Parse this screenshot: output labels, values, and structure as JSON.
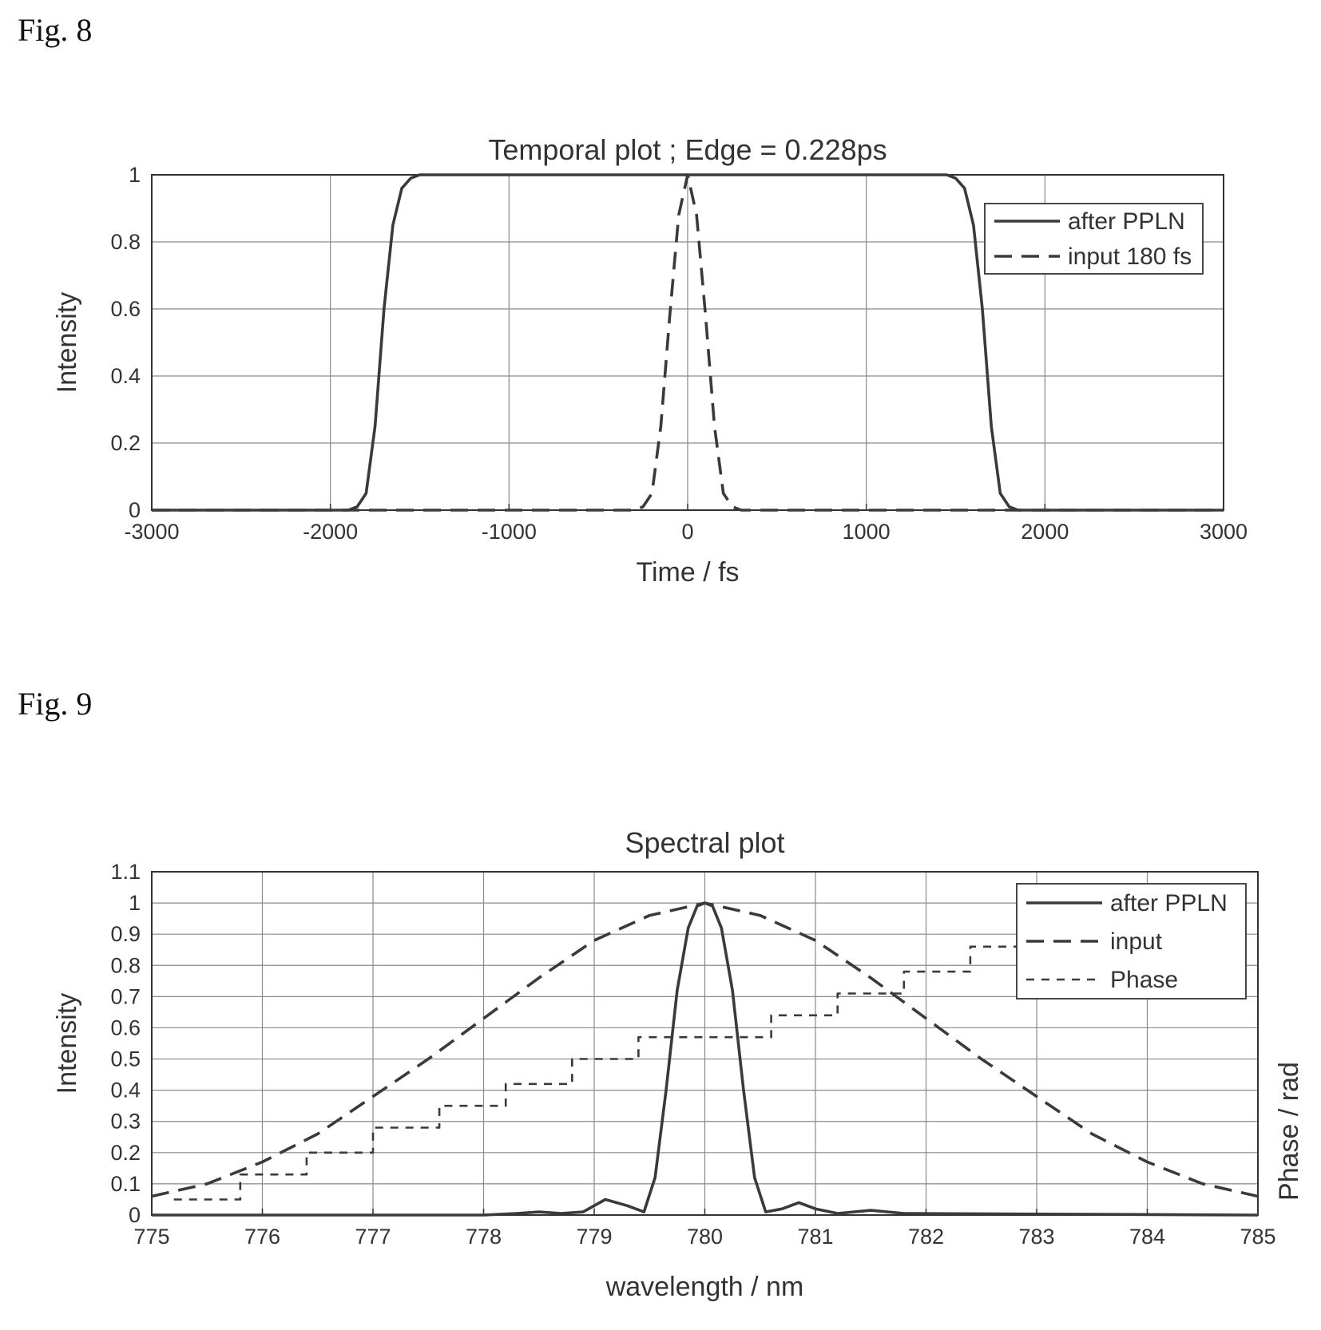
{
  "figures": {
    "fig8_label": "Fig. 8",
    "fig9_label": "Fig. 9"
  },
  "chart_data": [
    {
      "type": "line",
      "title": "Temporal plot ; Edge = 0.228ps",
      "xlabel": "Time / fs",
      "ylabel": "Intensity",
      "xlim": [
        -3000,
        3000
      ],
      "ylim": [
        0,
        1
      ],
      "xticks": [
        -3000,
        -2000,
        -1000,
        0,
        1000,
        2000,
        3000
      ],
      "yticks": [
        0,
        0.2,
        0.4,
        0.6,
        0.8,
        1
      ],
      "xtick_labels": [
        "-3000",
        "-2000",
        "-1000",
        "0",
        "1000",
        "2000",
        "3000"
      ],
      "ytick_labels": [
        "0",
        "0.2",
        "0.4",
        "0.6",
        "0.8",
        "1"
      ],
      "grid": true,
      "legend_position": "top-right",
      "series": [
        {
          "name": "after PPLN",
          "style": "solid",
          "x": [
            -3000,
            -2000,
            -1900,
            -1850,
            -1800,
            -1750,
            -1700,
            -1650,
            -1600,
            -1550,
            -1500,
            -1450,
            -1400,
            1400,
            1450,
            1500,
            1550,
            1600,
            1650,
            1700,
            1750,
            1800,
            1850,
            1900,
            2000,
            3000
          ],
          "y": [
            0,
            0,
            0,
            0.01,
            0.05,
            0.25,
            0.6,
            0.85,
            0.96,
            0.99,
            1,
            1,
            1,
            1,
            1,
            0.99,
            0.96,
            0.85,
            0.6,
            0.25,
            0.05,
            0.01,
            0,
            0,
            0,
            0
          ]
        },
        {
          "name": "input 180 fs",
          "style": "dashed",
          "x": [
            -3000,
            -300,
            -250,
            -200,
            -150,
            -100,
            -50,
            0,
            50,
            100,
            150,
            200,
            250,
            300,
            3000
          ],
          "y": [
            0,
            0,
            0.01,
            0.05,
            0.25,
            0.58,
            0.88,
            1,
            0.88,
            0.58,
            0.25,
            0.05,
            0.01,
            0,
            0
          ]
        }
      ]
    },
    {
      "type": "line",
      "title": "Spectral plot",
      "xlabel": "wavelength / nm",
      "ylabel": "Intensity",
      "ylabel_right": "Phase / rad",
      "xlim": [
        775,
        785
      ],
      "ylim": [
        0,
        1.1
      ],
      "xticks": [
        775,
        776,
        777,
        778,
        779,
        780,
        781,
        782,
        783,
        784,
        785
      ],
      "yticks": [
        0,
        0.1,
        0.2,
        0.3,
        0.4,
        0.5,
        0.6,
        0.7,
        0.8,
        0.9,
        1,
        1.1
      ],
      "xtick_labels": [
        "775",
        "776",
        "777",
        "778",
        "779",
        "780",
        "781",
        "782",
        "783",
        "784",
        "785"
      ],
      "ytick_labels": [
        "0",
        "0.1",
        "0.2",
        "0.3",
        "0.4",
        "0.5",
        "0.6",
        "0.7",
        "0.8",
        "0.9",
        "1",
        "1.1"
      ],
      "grid": true,
      "legend_position": "top-right",
      "series": [
        {
          "name": "after PPLN",
          "style": "solid",
          "x": [
            775,
            778,
            778.3,
            778.5,
            778.7,
            778.9,
            779.1,
            779.3,
            779.45,
            779.55,
            779.65,
            779.75,
            779.85,
            779.93,
            780,
            780.07,
            780.15,
            780.25,
            780.35,
            780.45,
            780.55,
            780.7,
            780.85,
            781.0,
            781.2,
            781.5,
            781.8,
            785
          ],
          "y": [
            0,
            0,
            0.005,
            0.01,
            0.005,
            0.01,
            0.05,
            0.03,
            0.01,
            0.12,
            0.4,
            0.72,
            0.92,
            0.99,
            1,
            0.99,
            0.92,
            0.72,
            0.4,
            0.12,
            0.01,
            0.02,
            0.04,
            0.02,
            0.005,
            0.015,
            0.005,
            0
          ]
        },
        {
          "name": "input",
          "style": "dashed",
          "x": [
            775,
            775.5,
            776,
            776.5,
            777,
            777.5,
            778,
            778.5,
            779,
            779.5,
            780,
            780.5,
            781,
            781.5,
            782,
            782.5,
            783,
            783.5,
            784,
            784.5,
            785
          ],
          "y": [
            0.06,
            0.1,
            0.17,
            0.26,
            0.38,
            0.5,
            0.63,
            0.76,
            0.88,
            0.96,
            1,
            0.96,
            0.88,
            0.76,
            0.63,
            0.5,
            0.38,
            0.26,
            0.17,
            0.1,
            0.06
          ]
        },
        {
          "name": "Phase",
          "style": "dotted-step",
          "x": [
            775.2,
            775.8,
            775.8,
            776.4,
            776.4,
            777.0,
            777.0,
            777.6,
            777.6,
            778.2,
            778.2,
            778.8,
            778.8,
            779.4,
            779.4,
            780.6,
            780.6,
            781.2,
            781.2,
            781.8,
            781.8,
            782.4,
            782.4,
            782.9
          ],
          "y": [
            0.05,
            0.05,
            0.13,
            0.13,
            0.2,
            0.2,
            0.28,
            0.28,
            0.35,
            0.35,
            0.42,
            0.42,
            0.5,
            0.5,
            0.57,
            0.57,
            0.64,
            0.64,
            0.71,
            0.71,
            0.78,
            0.78,
            0.86,
            0.86
          ]
        }
      ]
    }
  ]
}
